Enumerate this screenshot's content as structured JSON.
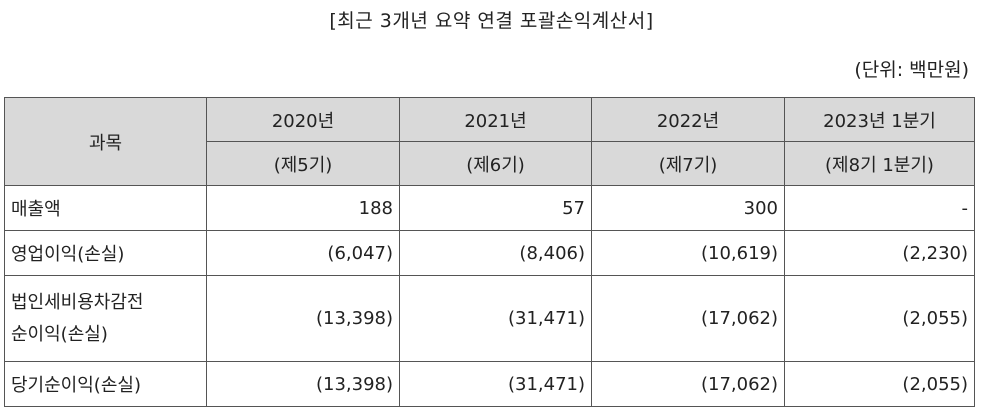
{
  "title": "[최근 3개년 요약 연결 포괄손익계산서]",
  "unit": "(단위: 백만원)",
  "table": {
    "subject_header": "과목",
    "periods": [
      {
        "year": "2020년",
        "term": "(제5기)"
      },
      {
        "year": "2021년",
        "term": "(제6기)"
      },
      {
        "year": "2022년",
        "term": "(제7기)"
      },
      {
        "year": "2023년 1분기",
        "term": "(제8기 1분기)"
      }
    ],
    "rows": [
      {
        "label": "매출액",
        "values": [
          "188",
          "57",
          "300",
          "-"
        ]
      },
      {
        "label": "영업이익(손실)",
        "values": [
          "(6,047)",
          "(8,406)",
          "(10,619)",
          "(2,230)"
        ]
      },
      {
        "label_line1": "법인세비용차감전",
        "label_line2": "순이익(손실)",
        "values": [
          "(13,398)",
          "(31,471)",
          "(17,062)",
          "(2,055)"
        ]
      },
      {
        "label": "당기순이익(손실)",
        "values": [
          "(13,398)",
          "(31,471)",
          "(17,062)",
          "(2,055)"
        ]
      }
    ]
  }
}
